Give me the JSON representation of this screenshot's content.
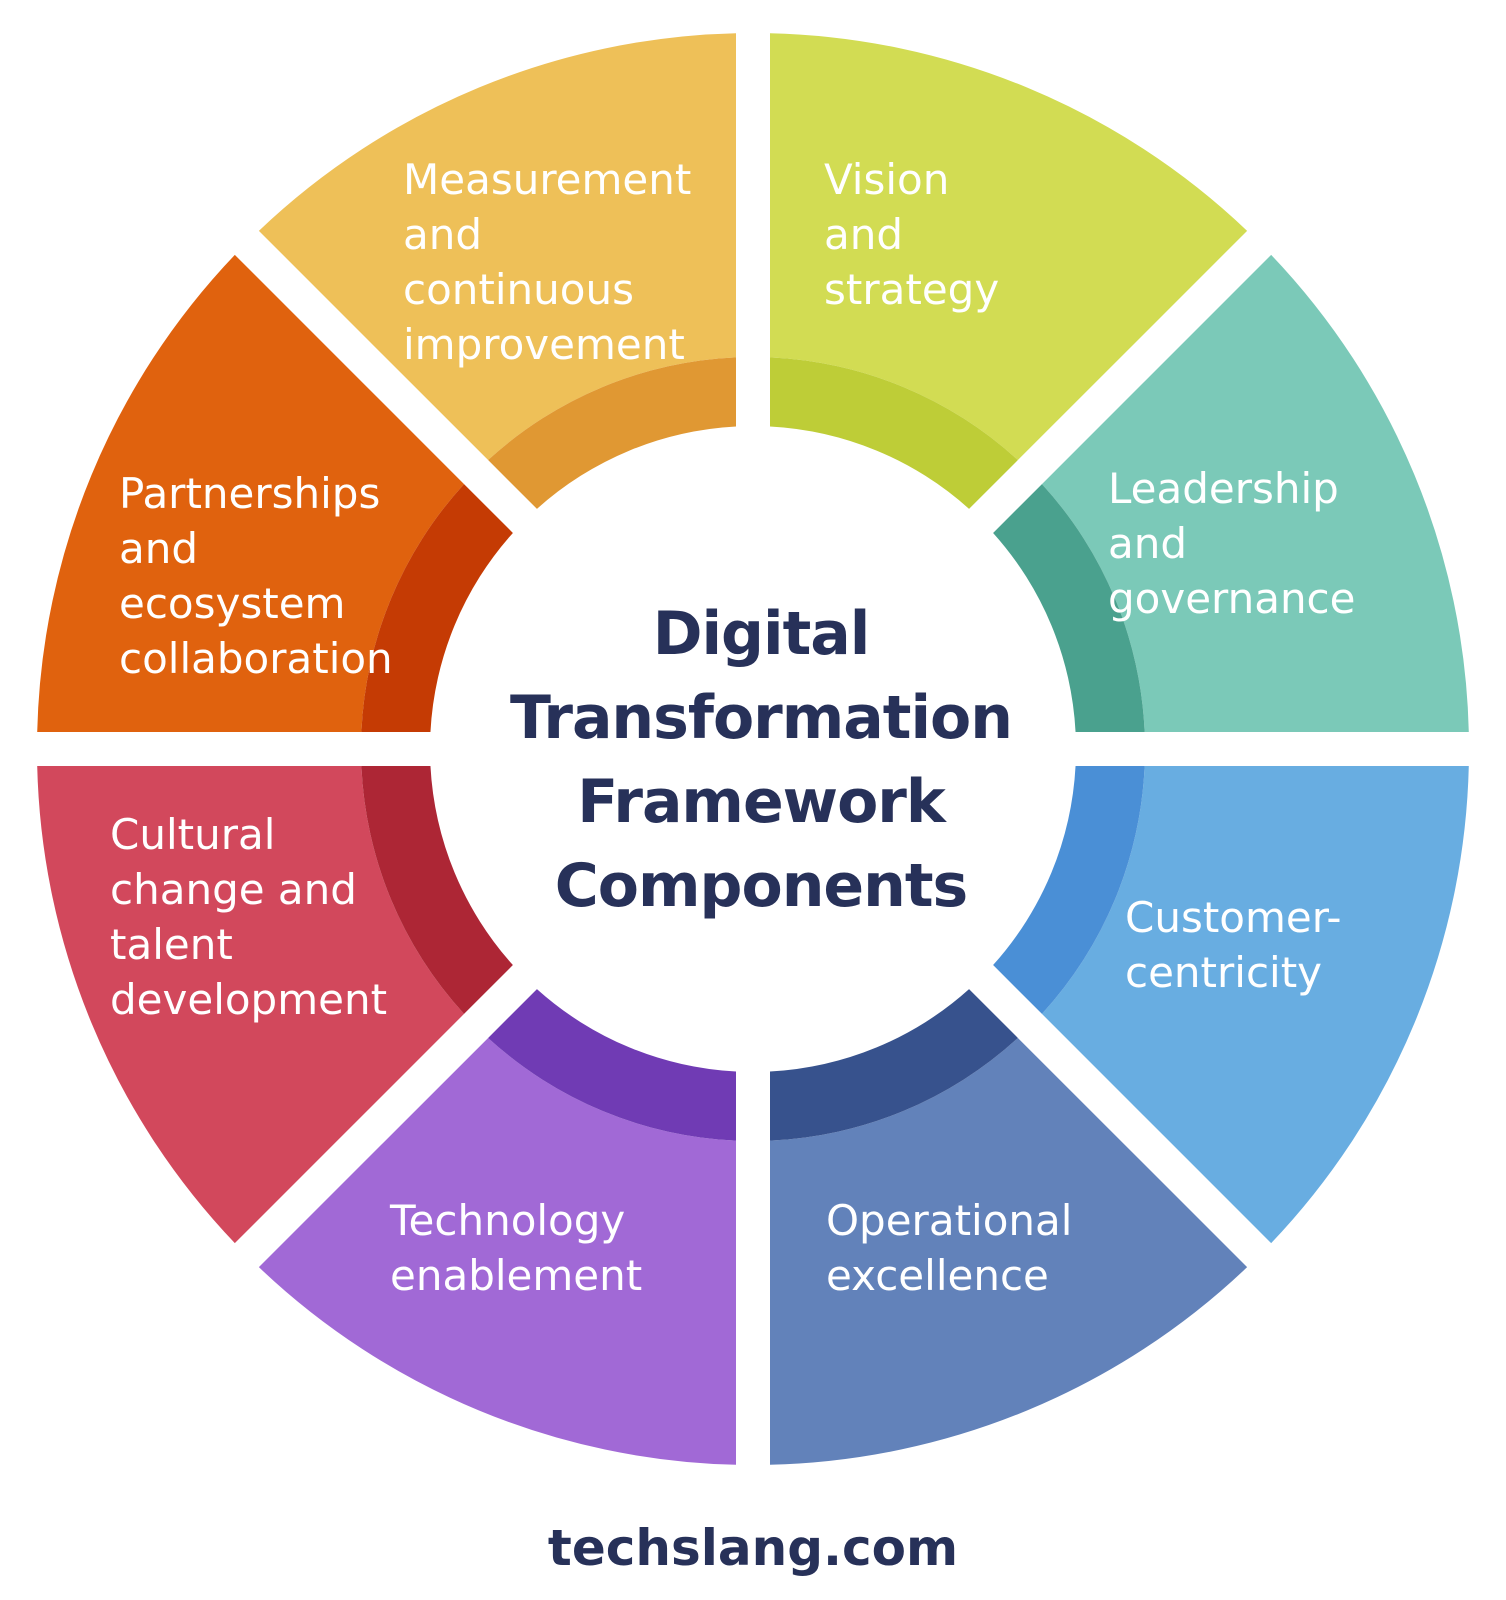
{
  "title_lines": [
    "Digital",
    "Transformation",
    "Framework",
    "Components"
  ],
  "segments": [
    {
      "id": "vision",
      "lines": [
        "Vision",
        "and",
        "strategy"
      ],
      "color": "#D2DC53",
      "band_color": "#BECD37"
    },
    {
      "id": "leadership",
      "lines": [
        "Leadership",
        "and",
        "governance"
      ],
      "color": "#7BC9B8",
      "band_color": "#4AA18E"
    },
    {
      "id": "customer",
      "lines": [
        "Customer-",
        "centricity"
      ],
      "color": "#68ADE1",
      "band_color": "#4A8FD6"
    },
    {
      "id": "operational",
      "lines": [
        "Operational",
        "excellence"
      ],
      "color": "#6282BA",
      "band_color": "#37528D"
    },
    {
      "id": "technology",
      "lines": [
        "Technology",
        "enablement"
      ],
      "color": "#A169D6",
      "band_color": "#703BB4"
    },
    {
      "id": "cultural",
      "lines": [
        "Cultural",
        "change and",
        "talent",
        "development"
      ],
      "color": "#D2485C",
      "band_color": "#AD2635"
    },
    {
      "id": "partnerships",
      "lines": [
        "Partnerships",
        "and",
        "ecosystem",
        "collaboration"
      ],
      "color": "#E0620E",
      "band_color": "#C53B04"
    },
    {
      "id": "measurement",
      "lines": [
        "Measurement",
        "and",
        "continuous",
        "improvement"
      ],
      "color": "#EEC058",
      "band_color": "#E09833"
    }
  ],
  "footer": {
    "brand": "techslang.com"
  }
}
